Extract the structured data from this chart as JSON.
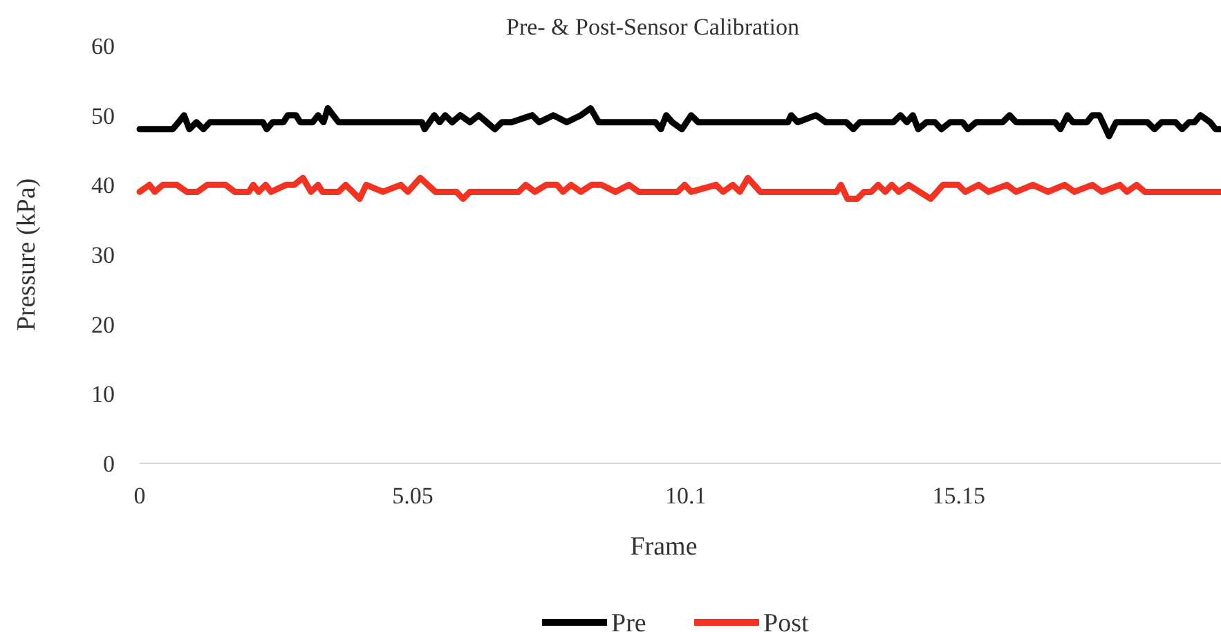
{
  "chart_data": {
    "type": "line",
    "title": "Pre- & Post-Sensor Calibration",
    "xlabel": "Frame",
    "ylabel": "Pressure (kPa)",
    "xlim": [
      0,
      20
    ],
    "xticks": [
      0,
      5.05,
      10.1,
      15.15
    ],
    "ylim": [
      0,
      60
    ],
    "yticks": [
      0,
      10,
      20,
      30,
      40,
      50,
      60
    ],
    "grid": false,
    "legend": "bottom",
    "marker": "none",
    "line_style": "solid",
    "series": [
      {
        "name": "Pre",
        "color": "#000000",
        "x": [
          0,
          0.61,
          0.72,
          0.82,
          0.92,
          1.05,
          1.18,
          1.3,
          2.28,
          2.35,
          2.46,
          2.66,
          2.74,
          2.89,
          2.97,
          3.2,
          3.3,
          3.4,
          3.48,
          3.58,
          3.68,
          5.22,
          5.27,
          5.45,
          5.55,
          5.65,
          5.78,
          5.93,
          6.11,
          6.27,
          6.42,
          6.57,
          6.7,
          6.88,
          7.26,
          7.39,
          7.65,
          7.9,
          8.16,
          8.34,
          8.49,
          9.54,
          9.64,
          9.74,
          9.85,
          10.03,
          10.2,
          10.33,
          11.99,
          12.05,
          12.17,
          12.51,
          12.69,
          13.07,
          13.2,
          13.32,
          13.94,
          14.07,
          14.19,
          14.3,
          14.4,
          14.55,
          14.71,
          14.83,
          14.99,
          15.22,
          15.32,
          15.47,
          15.96,
          16.09,
          16.21,
          16.93,
          17.03,
          17.16,
          17.26,
          17.52,
          17.62,
          17.75,
          17.93,
          18.06,
          18.64,
          18.77,
          18.9,
          19.16,
          19.28,
          19.41,
          19.51,
          19.62,
          19.8,
          19.9,
          20
        ],
        "values": [
          48,
          48,
          49,
          50,
          48,
          49,
          48,
          49,
          49,
          48,
          49,
          49,
          50,
          50,
          49,
          49,
          50,
          49,
          51,
          50,
          49,
          49,
          48,
          50,
          49,
          50,
          49,
          50,
          49,
          50,
          49,
          48,
          49,
          49,
          50,
          49,
          50,
          49,
          50,
          51,
          49,
          49,
          48,
          50,
          49,
          48,
          50,
          49,
          49,
          50,
          49,
          50,
          49,
          49,
          48,
          49,
          49,
          50,
          49,
          50,
          48,
          49,
          49,
          48,
          49,
          49,
          48,
          49,
          49,
          50,
          49,
          49,
          48,
          50,
          49,
          49,
          50,
          50,
          47,
          49,
          49,
          48,
          49,
          49,
          48,
          49,
          49,
          50,
          49,
          48,
          48
        ]
      },
      {
        "name": "Post",
        "color": "#f03323",
        "x": [
          0,
          0.18,
          0.28,
          0.43,
          0.69,
          0.87,
          1.07,
          1.25,
          1.59,
          1.76,
          2.02,
          2.1,
          2.2,
          2.33,
          2.43,
          2.71,
          2.86,
          3.02,
          3.17,
          3.3,
          3.38,
          3.68,
          3.81,
          4.07,
          4.19,
          4.5,
          4.83,
          4.96,
          5.19,
          5.47,
          5.86,
          5.98,
          6.11,
          7.01,
          7.14,
          7.31,
          7.52,
          7.72,
          7.83,
          7.98,
          8.16,
          8.36,
          8.54,
          8.8,
          9.05,
          9.23,
          9.95,
          10.08,
          10.2,
          10.66,
          10.79,
          10.97,
          11.1,
          11.25,
          11.48,
          12.89,
          12.97,
          13.09,
          13.27,
          13.4,
          13.53,
          13.66,
          13.79,
          13.91,
          14.04,
          14.22,
          14.63,
          14.86,
          15.14,
          15.27,
          15.52,
          15.7,
          16.04,
          16.21,
          16.52,
          16.8,
          17.11,
          17.29,
          17.62,
          17.8,
          18.13,
          18.26,
          18.44,
          18.59,
          20
        ],
        "values": [
          39,
          40,
          39,
          40,
          40,
          39,
          39,
          40,
          40,
          39,
          39,
          40,
          39,
          40,
          39,
          40,
          40,
          41,
          39,
          40,
          39,
          39,
          40,
          38,
          40,
          39,
          40,
          39,
          41,
          39,
          39,
          38,
          39,
          39,
          40,
          39,
          40,
          40,
          39,
          40,
          39,
          40,
          40,
          39,
          40,
          39,
          39,
          40,
          39,
          40,
          39,
          40,
          39,
          41,
          39,
          39,
          40,
          38,
          38,
          39,
          39,
          40,
          39,
          40,
          39,
          40,
          38,
          40,
          40,
          39,
          40,
          39,
          40,
          39,
          40,
          39,
          40,
          39,
          40,
          39,
          40,
          39,
          40,
          39,
          39
        ]
      }
    ]
  }
}
